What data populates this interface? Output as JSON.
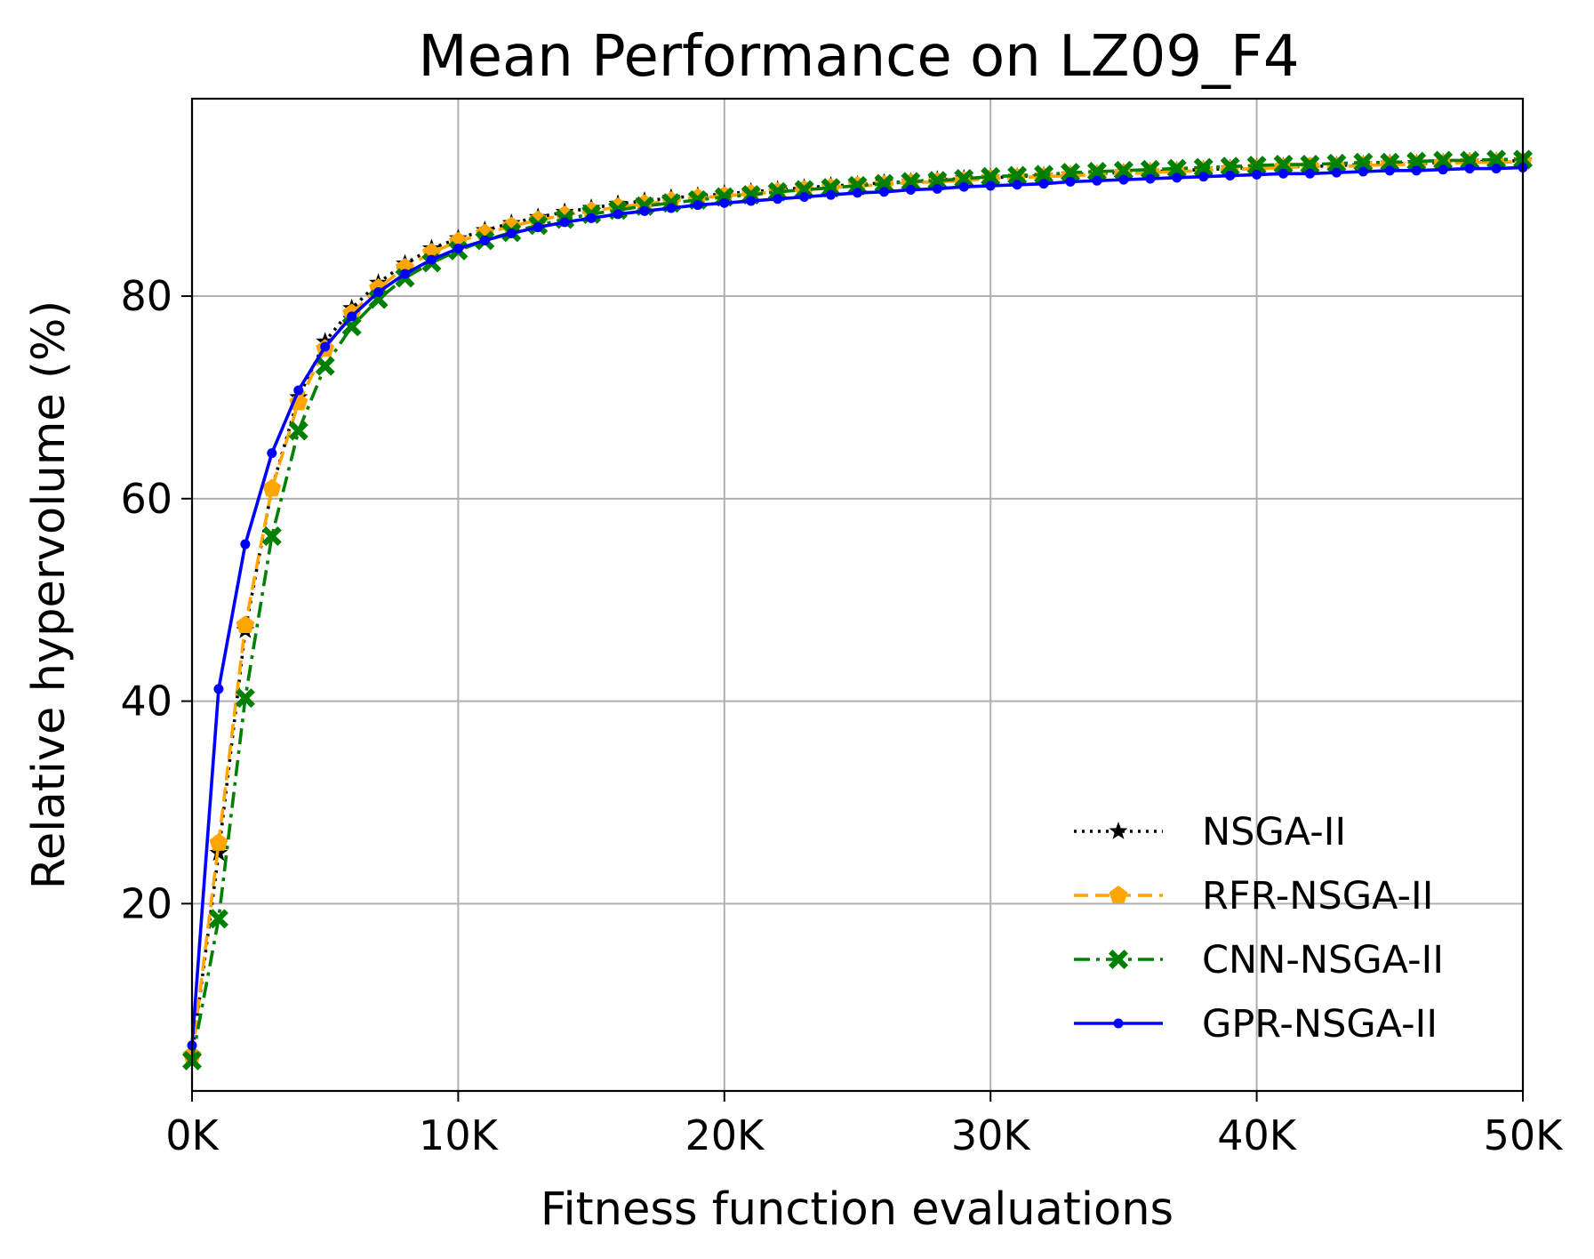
{
  "chart_data": {
    "type": "line",
    "title": "Mean Performance on LZ09_F4",
    "xlabel": "Fitness function evaluations",
    "ylabel": "Relative hypervolume (%)",
    "xlim": [
      0,
      50000
    ],
    "ylim": [
      1.5,
      99.5
    ],
    "grid": true,
    "legend_position": "bottom-right",
    "x_ticks": [
      0,
      10000,
      20000,
      30000,
      40000,
      50000
    ],
    "x_tick_labels": [
      "0K",
      "10K",
      "20K",
      "30K",
      "40K",
      "50K"
    ],
    "y_ticks": [
      20,
      40,
      60,
      80
    ],
    "y_tick_labels": [
      "20",
      "40",
      "60",
      "80"
    ],
    "x": [
      0,
      1000,
      2000,
      3000,
      4000,
      5000,
      6000,
      7000,
      8000,
      9000,
      10000,
      11000,
      12000,
      13000,
      14000,
      15000,
      16000,
      17000,
      18000,
      19000,
      20000,
      21000,
      22000,
      23000,
      24000,
      25000,
      26000,
      27000,
      28000,
      29000,
      30000,
      31000,
      32000,
      33000,
      34000,
      35000,
      36000,
      37000,
      38000,
      39000,
      40000,
      41000,
      42000,
      43000,
      44000,
      45000,
      46000,
      47000,
      48000,
      49000,
      50000
    ],
    "series": [
      {
        "name": "NSGA-II",
        "color": "#000000",
        "dash": "dotted",
        "marker": "star",
        "values": [
          5,
          25,
          47,
          61,
          70,
          75.5,
          78.8,
          81.3,
          83.2,
          84.7,
          85.7,
          86.5,
          87.2,
          87.8,
          88.3,
          88.7,
          89.1,
          89.4,
          89.7,
          89.9,
          90.1,
          90.3,
          90.5,
          90.7,
          90.9,
          91.0,
          91.2,
          91.3,
          91.5,
          91.6,
          91.7,
          91.8,
          91.9,
          92.0,
          92.1,
          92.2,
          92.3,
          92.4,
          92.5,
          92.6,
          92.7,
          92.8,
          92.8,
          92.9,
          93.0,
          93.1,
          93.1,
          93.2,
          93.3,
          93.3,
          93.4
        ]
      },
      {
        "name": "RFR-NSGA-II",
        "color": "#ffa500",
        "dash": "dashed",
        "marker": "pentagon",
        "values": [
          5,
          26,
          47.5,
          61,
          69.5,
          74.8,
          78.3,
          80.8,
          82.8,
          84.3,
          85.4,
          86.2,
          86.9,
          87.5,
          88.0,
          88.4,
          88.8,
          89.1,
          89.4,
          89.7,
          89.9,
          90.1,
          90.3,
          90.5,
          90.7,
          90.9,
          91.0,
          91.2,
          91.3,
          91.4,
          91.6,
          91.7,
          91.8,
          91.9,
          92.0,
          92.1,
          92.2,
          92.3,
          92.4,
          92.5,
          92.6,
          92.7,
          92.8,
          92.8,
          92.9,
          93.0,
          93.0,
          93.1,
          93.2,
          93.2,
          93.3
        ]
      },
      {
        "name": "CNN-NSGA-II",
        "color": "#008000",
        "dash": "dashdot",
        "marker": "x",
        "values": [
          4.5,
          18.5,
          40.3,
          56.3,
          66.7,
          73.1,
          77.0,
          79.7,
          81.8,
          83.3,
          84.5,
          85.5,
          86.3,
          87.0,
          87.6,
          88.1,
          88.5,
          88.9,
          89.2,
          89.5,
          89.8,
          90.0,
          90.3,
          90.5,
          90.7,
          90.9,
          91.1,
          91.3,
          91.4,
          91.6,
          91.8,
          91.9,
          92.0,
          92.2,
          92.3,
          92.4,
          92.5,
          92.6,
          92.7,
          92.8,
          92.9,
          93.0,
          93.0,
          93.1,
          93.2,
          93.2,
          93.3,
          93.4,
          93.4,
          93.5,
          93.5
        ]
      },
      {
        "name": "GPR-NSGA-II",
        "color": "#0000ff",
        "dash": "solid",
        "marker": "point",
        "values": [
          6,
          41.2,
          55.5,
          64.5,
          70.7,
          75.0,
          78.0,
          80.4,
          82.2,
          83.6,
          84.7,
          85.5,
          86.2,
          86.8,
          87.3,
          87.7,
          88.1,
          88.4,
          88.7,
          89.0,
          89.2,
          89.4,
          89.6,
          89.8,
          90.0,
          90.2,
          90.3,
          90.5,
          90.6,
          90.8,
          90.9,
          91.0,
          91.1,
          91.3,
          91.4,
          91.5,
          91.6,
          91.7,
          91.8,
          91.9,
          92.0,
          92.1,
          92.1,
          92.2,
          92.3,
          92.4,
          92.4,
          92.5,
          92.6,
          92.6,
          92.7
        ]
      }
    ]
  }
}
